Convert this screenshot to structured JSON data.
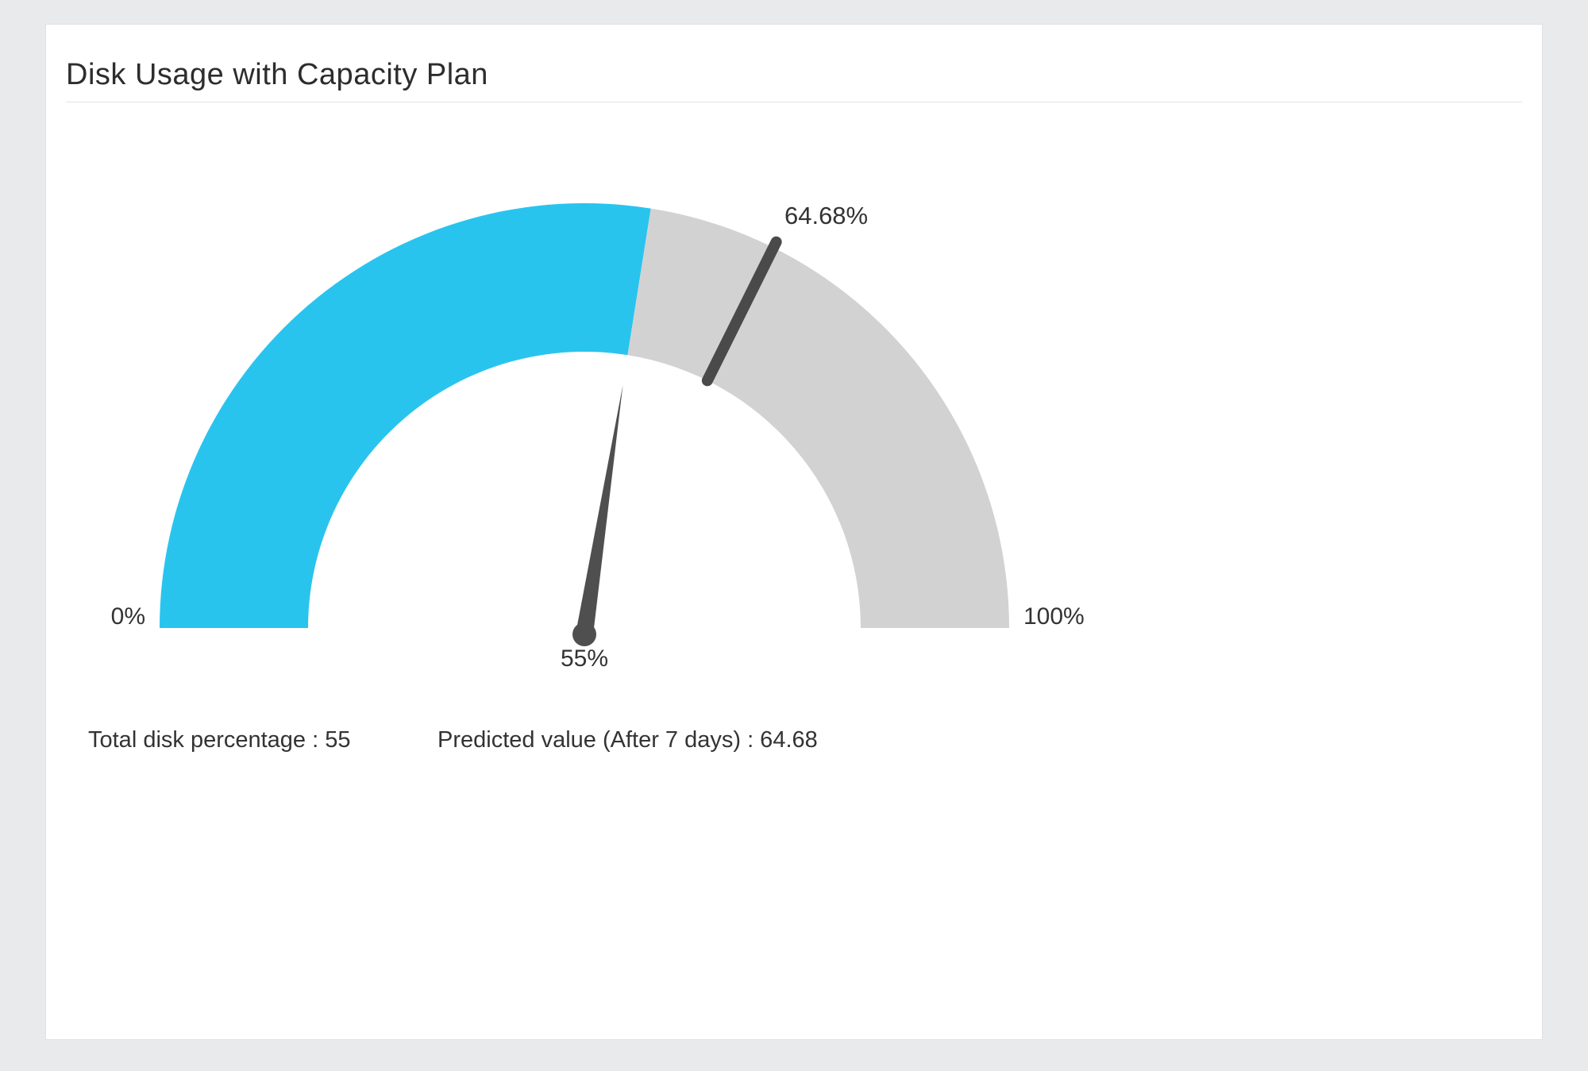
{
  "card": {
    "title": "Disk Usage with Capacity Plan"
  },
  "chart_data": {
    "type": "gauge",
    "title": "Disk Usage with Capacity Plan",
    "min": 0,
    "max": 100,
    "value": 55,
    "predicted_value": 64.68,
    "min_label": "0%",
    "max_label": "100%",
    "value_label": "55%",
    "predicted_label": "64.68%",
    "start_angle_deg": 180,
    "end_angle_deg": 0,
    "colors": {
      "filled": "#29c4ee",
      "remaining": "#d2d2d2",
      "needle": "#4f4f4f",
      "threshold_tick": "#4a4a4a",
      "labels": "#333333"
    }
  },
  "legend": {
    "total": "Total disk percentage : 55",
    "predicted": "Predicted value (After 7 days) : 64.68"
  }
}
